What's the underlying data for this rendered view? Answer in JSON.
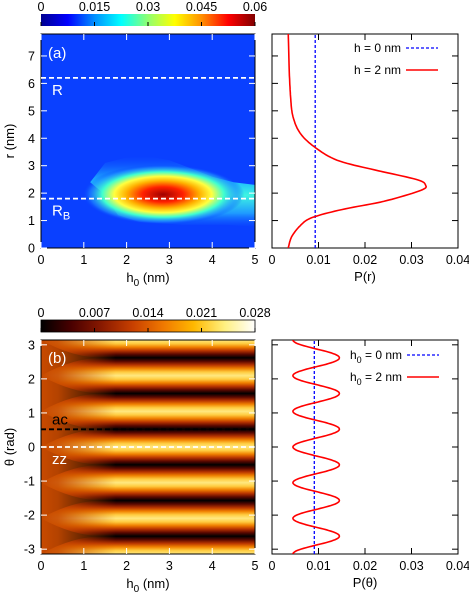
{
  "chart_data": [
    {
      "id": "a-map",
      "type": "heatmap",
      "panel_label": "(a)",
      "xlabel_main": "h",
      "xlabel_sub": "0",
      "xlabel_unit": " (nm)",
      "ylabel": "r (nm)",
      "xlim": [
        0,
        5
      ],
      "ylim": [
        0,
        7.8
      ],
      "xticks": [
        0,
        1,
        2,
        3,
        4,
        5
      ],
      "yticks": [
        0,
        1,
        2,
        3,
        4,
        5,
        6,
        7
      ],
      "colorbar": {
        "ticks": [
          "0",
          "0.015",
          "0.03",
          "0.045",
          "0.06"
        ],
        "range": [
          0,
          0.06
        ],
        "colormap": "jet",
        "stops": [
          "#000090",
          "#0000ff",
          "#0090ff",
          "#00ffff",
          "#90ff70",
          "#ffff00",
          "#ff9000",
          "#ff0000",
          "#800000"
        ]
      },
      "reference_lines": [
        {
          "y": 6.2,
          "label": "R",
          "color": "#ffffff"
        },
        {
          "y": 1.8,
          "label": "R",
          "label_sub": "B",
          "color": "#ffffff"
        }
      ],
      "feature": {
        "description_value": "peak density near r = 1.8 to 2.0 nm for h0 between 2 and 3.2 nm",
        "peak": 0.06
      }
    },
    {
      "id": "a-profile",
      "type": "line",
      "xlabel": "P(r)",
      "xlim": [
        0,
        0.04
      ],
      "ylim": [
        0,
        7.8
      ],
      "xticks": [
        "0",
        "0.01",
        "0.02",
        "0.03",
        "0.04"
      ],
      "legend_position": "top-right",
      "series": [
        {
          "name": "h = 0 nm",
          "style": "dashed",
          "color": "#0000ff",
          "points": [
            [
              0.0093,
              0
            ],
            [
              0.0093,
              7.8
            ]
          ]
        },
        {
          "name": "h = 2 nm",
          "style": "solid",
          "color": "#ff0000",
          "points": [
            [
              0.0035,
              0
            ],
            [
              0.0042,
              0.4
            ],
            [
              0.006,
              0.8
            ],
            [
              0.0085,
              1.1
            ],
            [
              0.015,
              1.4
            ],
            [
              0.024,
              1.7
            ],
            [
              0.032,
              2.1
            ],
            [
              0.033,
              2.3
            ],
            [
              0.031,
              2.5
            ],
            [
              0.022,
              2.85
            ],
            [
              0.014,
              3.2
            ],
            [
              0.009,
              3.7
            ],
            [
              0.006,
              4.2
            ],
            [
              0.0045,
              4.8
            ],
            [
              0.004,
              5.5
            ],
            [
              0.0037,
              6.5
            ],
            [
              0.0035,
              7.8
            ]
          ]
        }
      ]
    },
    {
      "id": "b-map",
      "type": "heatmap",
      "panel_label": "(b)",
      "xlabel_main": "h",
      "xlabel_sub": "0",
      "xlabel_unit": " (nm)",
      "ylabel": "θ (rad)",
      "xlim": [
        0,
        5
      ],
      "ylim": [
        -3.14159,
        3.14159
      ],
      "xticks": [
        0,
        1,
        2,
        3,
        4,
        5
      ],
      "yticks": [
        -3,
        -2,
        -1,
        0,
        1,
        2,
        3
      ],
      "colorbar": {
        "ticks": [
          "0",
          "0.007",
          "0.014",
          "0.021",
          "0.028"
        ],
        "range": [
          0,
          0.028
        ],
        "colormap": "hot",
        "stops": [
          "#000000",
          "#4a0000",
          "#8a1a00",
          "#c84000",
          "#f07800",
          "#ffb800",
          "#fff080",
          "#ffffff"
        ]
      },
      "reference_lines": [
        {
          "y": 0.52,
          "label": "ac",
          "color": "#000000"
        },
        {
          "y": 0.0,
          "label": "zz",
          "color": "#ffffff"
        }
      ],
      "feature": {
        "stripes": 6,
        "period_rad": 1.0472
      }
    },
    {
      "id": "b-profile",
      "type": "line",
      "xlabel": "P(θ)",
      "xlim": [
        0,
        0.04
      ],
      "ylim": [
        -3.14159,
        3.14159
      ],
      "xticks": [
        "0",
        "0.01",
        "0.02",
        "0.03",
        "0.04"
      ],
      "legend_position": "top-right",
      "series": [
        {
          "name_main": "h",
          "name_sub": "0",
          "name_rest": " = 0 nm",
          "style": "dashed",
          "color": "#0000ff",
          "value": 0.0091
        },
        {
          "name_main": "h",
          "name_sub": "0",
          "name_rest": " = 2 nm",
          "style": "solid",
          "color": "#ff0000",
          "mean": 0.0095,
          "amplitude": 0.005,
          "period_count": 6,
          "phase_rad": 0.5236
        }
      ]
    }
  ]
}
